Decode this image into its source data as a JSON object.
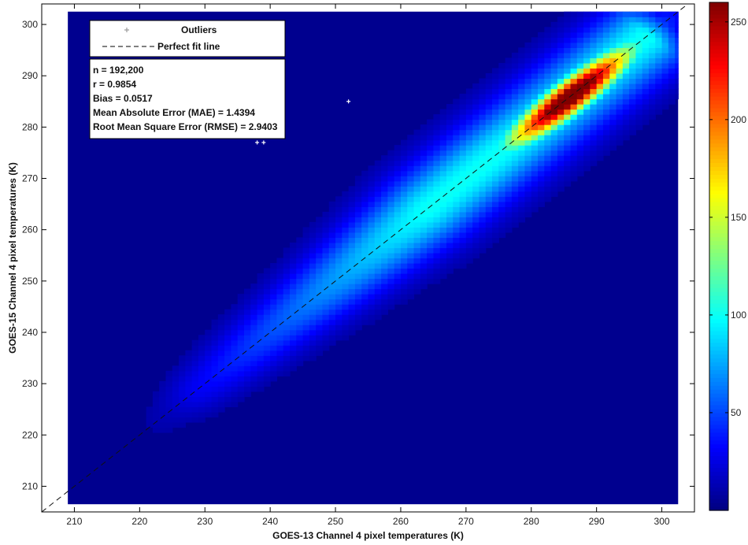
{
  "chart_data": {
    "type": "heatmap",
    "title": "",
    "xlabel": "GOES-13 Channel 4 pixel temperatures (K)",
    "ylabel": "GOES-15 Channel 4 pixel temperatures (K)",
    "xlim": [
      205,
      305
    ],
    "ylim": [
      205,
      304
    ],
    "data_extent_x": [
      209,
      302.5
    ],
    "data_extent_y": [
      206.5,
      302.5
    ],
    "x_ticks": [
      210,
      220,
      230,
      240,
      250,
      260,
      270,
      280,
      290,
      300
    ],
    "y_ticks": [
      210,
      220,
      230,
      240,
      250,
      260,
      270,
      280,
      290,
      300
    ],
    "colormap": "jet",
    "colorbar": {
      "range": [
        0,
        260
      ],
      "ticks": [
        50,
        100,
        150,
        200,
        250
      ]
    },
    "density_peak": {
      "x": 286,
      "y": 286,
      "count": 260
    },
    "background_color": "#00008f",
    "outliers": {
      "name": "Outliers",
      "points": [
        {
          "x": 252,
          "y": 285
        },
        {
          "x": 238,
          "y": 277
        },
        {
          "x": 239,
          "y": 277
        }
      ],
      "color": "#ffffff"
    },
    "perfect_fit_line": {
      "name": "Perfect fit line",
      "from": [
        205,
        205
      ],
      "to": [
        304,
        304
      ]
    },
    "legend_placement": "top-left",
    "stats": [
      "n = 192,200",
      "r = 0.9854",
      "Bias = 0.0517",
      "Mean Absolute Error (MAE) = 1.4394",
      "Root Mean Square Error (RMSE) = 2.9403"
    ],
    "grid": false
  }
}
